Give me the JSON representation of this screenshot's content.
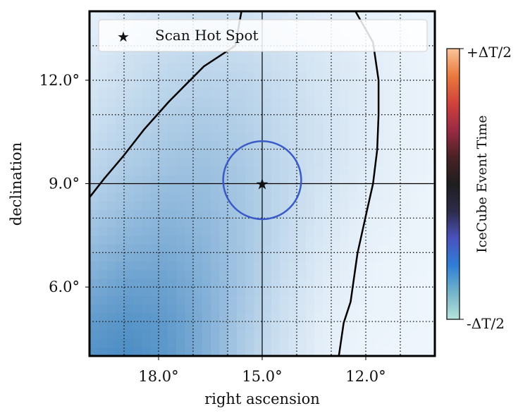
{
  "chart_data": {
    "type": "heatmap",
    "xlabel": "right ascension",
    "ylabel": "declination",
    "xlim": [
      20,
      10
    ],
    "ylim": [
      4,
      14
    ],
    "x_ticks": [
      {
        "value": 18,
        "label": "18.0°"
      },
      {
        "value": 15,
        "label": "15.0°"
      },
      {
        "value": 12,
        "label": "12.0°"
      }
    ],
    "y_ticks": [
      {
        "value": 12,
        "label": "12.0°"
      },
      {
        "value": 9,
        "label": "9.0°"
      },
      {
        "value": 6,
        "label": "6.0°"
      }
    ],
    "grid": "dotted, every 1°",
    "crosshair": {
      "ra": 15,
      "dec": 9
    },
    "hot_spot": {
      "ra": 15,
      "dec": 9,
      "marker": "star"
    },
    "error_circle": {
      "ra": 15,
      "dec": 9.1,
      "radius_deg": 1.13,
      "color": "#3a5bc7"
    },
    "legend": {
      "position": "top",
      "entries": [
        "Scan Hot Spot"
      ]
    },
    "heatmap": {
      "colormap": "Blues",
      "rows_dec_top_to_bottom": [
        [
          0.08,
          0.12,
          0.16,
          0.18,
          0.18,
          0.14,
          0.1,
          0.08,
          0.06,
          0.05
        ],
        [
          0.12,
          0.18,
          0.22,
          0.24,
          0.22,
          0.18,
          0.14,
          0.1,
          0.07,
          0.05
        ],
        [
          0.16,
          0.22,
          0.28,
          0.3,
          0.28,
          0.22,
          0.16,
          0.12,
          0.08,
          0.06
        ],
        [
          0.2,
          0.28,
          0.34,
          0.36,
          0.32,
          0.24,
          0.18,
          0.12,
          0.08,
          0.06
        ],
        [
          0.26,
          0.34,
          0.4,
          0.42,
          0.36,
          0.26,
          0.18,
          0.12,
          0.08,
          0.06
        ],
        [
          0.34,
          0.42,
          0.48,
          0.46,
          0.38,
          0.26,
          0.16,
          0.1,
          0.07,
          0.05
        ],
        [
          0.44,
          0.52,
          0.56,
          0.5,
          0.38,
          0.24,
          0.14,
          0.08,
          0.06,
          0.05
        ],
        [
          0.56,
          0.64,
          0.64,
          0.54,
          0.38,
          0.22,
          0.12,
          0.07,
          0.05,
          0.04
        ],
        [
          0.68,
          0.74,
          0.7,
          0.56,
          0.36,
          0.2,
          0.1,
          0.06,
          0.05,
          0.04
        ],
        [
          0.76,
          0.8,
          0.72,
          0.56,
          0.34,
          0.18,
          0.09,
          0.05,
          0.04,
          0.04
        ]
      ]
    },
    "contours": [
      {
        "points": [
          [
            20,
            8.6
          ],
          [
            19.57,
            9.15
          ],
          [
            19.02,
            9.8
          ],
          [
            18.42,
            10.57
          ],
          [
            17.7,
            11.38
          ],
          [
            16.69,
            12.4
          ],
          [
            15.78,
            13.0
          ],
          [
            15.6,
            14
          ]
        ]
      },
      {
        "points": [
          [
            12.3,
            14
          ],
          [
            11.79,
            13.1
          ],
          [
            11.63,
            12.0
          ],
          [
            11.63,
            11.0
          ],
          [
            11.67,
            9.98
          ],
          [
            11.79,
            9.0
          ],
          [
            11.97,
            8.2
          ],
          [
            12.24,
            6.98
          ],
          [
            12.44,
            5.57
          ],
          [
            12.64,
            4.96
          ],
          [
            12.78,
            4.0
          ]
        ]
      }
    ],
    "colorbar": {
      "label": "IceCube Event Time",
      "top_label": "+ΔT/2",
      "bottom_label": "-ΔT/2",
      "colors": [
        "#b7e4da",
        "#72b3c9",
        "#2f7ed6",
        "#4a52bd",
        "#2d2b48",
        "#1e1e1e",
        "#4a2226",
        "#9b2a45",
        "#d0433a",
        "#ea7a3e",
        "#fbc49a"
      ]
    }
  }
}
